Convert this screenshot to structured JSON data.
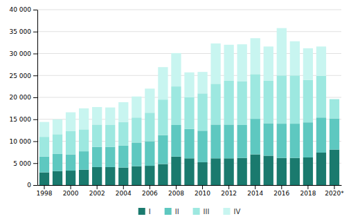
{
  "chart_data": {
    "type": "bar",
    "stacked": true,
    "grid": true,
    "categories": [
      "1998",
      null,
      "2000",
      null,
      "2002",
      null,
      "2004",
      null,
      "2006",
      null,
      "2008",
      null,
      "2010",
      null,
      "2012",
      null,
      "2014",
      null,
      "2016",
      null,
      "2018",
      null,
      "2020*"
    ],
    "series": [
      {
        "name": "I",
        "color": "#1a7a6e",
        "values": [
          2900,
          3200,
          3300,
          3500,
          4100,
          4100,
          4000,
          4300,
          4400,
          4800,
          6500,
          6100,
          5200,
          6100,
          6100,
          6200,
          7000,
          6700,
          6200,
          6200,
          6300,
          7400,
          8100
        ]
      },
      {
        "name": "II",
        "color": "#5ec8c0",
        "values": [
          3600,
          3900,
          3700,
          4200,
          4600,
          4600,
          5000,
          5400,
          5600,
          6600,
          7200,
          6700,
          7200,
          7700,
          7700,
          7500,
          8100,
          7400,
          7800,
          7800,
          8000,
          8000,
          7100
        ]
      },
      {
        "name": "III",
        "color": "#9de8e0",
        "values": [
          4500,
          4500,
          5300,
          5000,
          5100,
          5000,
          5400,
          5700,
          6500,
          8100,
          8800,
          7200,
          8500,
          9300,
          10000,
          10000,
          10200,
          9700,
          11000,
          11000,
          9700,
          9500,
          4400
        ]
      },
      {
        "name": "IV",
        "color": "#c8f5f0",
        "values": [
          3400,
          3400,
          4300,
          4800,
          4000,
          4000,
          4500,
          4800,
          5500,
          7400,
          7600,
          5700,
          4900,
          9200,
          8200,
          8400,
          8200,
          7800,
          10800,
          7800,
          7200,
          6700,
          0
        ]
      }
    ],
    "ylim": [
      0,
      40000
    ],
    "yticks": [
      0,
      {
        "value": 5000,
        "label": "5 000"
      },
      {
        "value": 10000,
        "label": "10 000"
      },
      {
        "value": 15000,
        "label": "15 000"
      },
      {
        "value": 20000,
        "label": "20 000"
      },
      {
        "value": 25000,
        "label": "25 000"
      },
      {
        "value": 30000,
        "label": "30 000"
      },
      {
        "value": 35000,
        "label": "35 000"
      },
      {
        "value": 40000,
        "label": "40 000"
      }
    ]
  }
}
